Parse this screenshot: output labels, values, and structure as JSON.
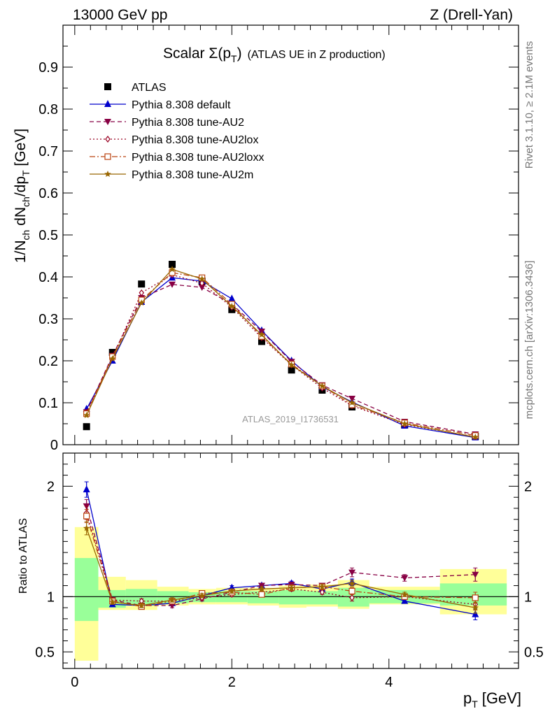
{
  "header": {
    "left": "13000 GeV pp",
    "right": "Z (Drell-Yan)"
  },
  "side_labels": {
    "rivet": "Rivet 3.1.10, ≥ 2.1M events",
    "mcplots": "mcplots.cern.ch [arXiv:1306.3436]"
  },
  "chart_data": {
    "type": "line",
    "title": "Scalar Σ(pT) (ATLAS UE in Z production)",
    "title_main": "Scalar Σ(p",
    "title_sub": "T",
    "title_close": ")",
    "title_rest": "(ATLAS UE in Z production)",
    "watermark": "ATLAS_2019_I1736531",
    "xlabel": "p_T [GeV]",
    "xlabel_main": "p",
    "xlabel_sub": "T",
    "xlabel_unit": "[GeV]",
    "ylabel": "1/N_ch dN_ch/dp_T [GeV]",
    "ylabel_parts": {
      "a": "1/N",
      "b": "ch",
      "c": " dN",
      "d": "ch",
      "e": "/dp",
      "f": "T",
      "g": " [GeV]"
    },
    "ratio_ylabel": "Ratio to ATLAS",
    "xlim": [
      -0.15,
      5.65
    ],
    "ylim_main": [
      0,
      1.0
    ],
    "ylim_ratio": [
      0.35,
      2.3
    ],
    "x_ticks": [
      "0",
      "2",
      "4"
    ],
    "y_ticks_main": [
      "0",
      "0.1",
      "0.2",
      "0.3",
      "0.4",
      "0.5",
      "0.6",
      "0.7",
      "0.8",
      "0.9"
    ],
    "y_ticks_ratio": [
      "0.5",
      "1",
      "2"
    ],
    "x": [
      0.15,
      0.48,
      0.85,
      1.24,
      1.62,
      2.0,
      2.38,
      2.76,
      3.15,
      3.53,
      4.2,
      5.1
    ],
    "bin_edges": [
      0,
      0.3,
      0.65,
      1.05,
      1.45,
      1.8,
      2.2,
      2.6,
      2.95,
      3.35,
      3.75,
      4.65,
      5.5
    ],
    "band_inner": [
      [
        0.78,
        1.35
      ],
      [
        0.9,
        1.06
      ],
      [
        0.92,
        1.07
      ],
      [
        0.94,
        1.05
      ],
      [
        0.95,
        1.04
      ],
      [
        0.95,
        1.05
      ],
      [
        0.94,
        1.05
      ],
      [
        0.93,
        1.06
      ],
      [
        0.93,
        1.05
      ],
      [
        0.91,
        1.08
      ],
      [
        0.94,
        1.06
      ],
      [
        0.92,
        1.12
      ]
    ],
    "band_outer": [
      [
        0.42,
        1.63
      ],
      [
        0.88,
        1.18
      ],
      [
        0.88,
        1.15
      ],
      [
        0.92,
        1.09
      ],
      [
        0.93,
        1.07
      ],
      [
        0.93,
        1.08
      ],
      [
        0.92,
        1.08
      ],
      [
        0.9,
        1.1
      ],
      [
        0.91,
        1.11
      ],
      [
        0.89,
        1.15
      ],
      [
        0.93,
        1.09
      ],
      [
        0.84,
        1.25
      ]
    ],
    "series": [
      {
        "name": "ATLAS",
        "color": "#000000",
        "style": "data",
        "marker": "square",
        "values": [
          0.043,
          0.22,
          0.383,
          0.43,
          0.39,
          0.322,
          0.246,
          0.178,
          0.13,
          0.09,
          0.047,
          0.02
        ]
      },
      {
        "name": "Pythia 8.308 default",
        "color": "#0000cc",
        "style": "solid",
        "marker": "triangle-up",
        "values": [
          0.085,
          0.2,
          0.34,
          0.398,
          0.39,
          0.348,
          0.272,
          0.2,
          0.138,
          0.102,
          0.045,
          0.017
        ],
        "ratio": [
          1.97,
          0.93,
          0.92,
          0.94,
          1.01,
          1.08,
          1.1,
          1.12,
          1.07,
          1.13,
          0.96,
          0.84
        ],
        "ratio_err": [
          0.07,
          0.02,
          0.02,
          0.02,
          0.02,
          0.02,
          0.02,
          0.02,
          0.02,
          0.03,
          0.02,
          0.05
        ]
      },
      {
        "name": "Pythia 8.308 tune-AU2",
        "color": "#880044",
        "style": "dash",
        "marker": "triangle-down",
        "values": [
          0.078,
          0.212,
          0.35,
          0.382,
          0.375,
          0.335,
          0.27,
          0.198,
          0.142,
          0.11,
          0.055,
          0.025
        ],
        "ratio": [
          1.82,
          0.97,
          0.92,
          0.92,
          0.98,
          1.04,
          1.1,
          1.11,
          1.1,
          1.22,
          1.17,
          1.2
        ],
        "ratio_err": [
          0.06,
          0.02,
          0.02,
          0.02,
          0.02,
          0.02,
          0.02,
          0.02,
          0.02,
          0.04,
          0.03,
          0.06
        ]
      },
      {
        "name": "Pythia 8.308 tune-AU2lox",
        "color": "#990022",
        "style": "dot",
        "marker": "diamond-open",
        "values": [
          0.076,
          0.208,
          0.362,
          0.405,
          0.385,
          0.328,
          0.255,
          0.19,
          0.135,
          0.093,
          0.048,
          0.019
        ],
        "ratio": [
          1.76,
          0.97,
          0.96,
          0.96,
          0.99,
          1.02,
          1.04,
          1.07,
          1.04,
          0.99,
          1.0,
          0.93
        ],
        "ratio_err": [
          0.06,
          0.02,
          0.02,
          0.02,
          0.02,
          0.02,
          0.02,
          0.02,
          0.02,
          0.03,
          0.02,
          0.05
        ]
      },
      {
        "name": "Pythia 8.308 tune-AU2loxx",
        "color": "#bb4411",
        "style": "dashdot",
        "marker": "square-open",
        "values": [
          0.074,
          0.21,
          0.345,
          0.41,
          0.398,
          0.335,
          0.258,
          0.192,
          0.14,
          0.095,
          0.052,
          0.022
        ],
        "ratio": [
          1.73,
          0.96,
          0.91,
          0.96,
          1.03,
          1.04,
          1.02,
          1.08,
          1.09,
          1.05,
          1.0,
          0.99
        ],
        "ratio_err": [
          0.06,
          0.02,
          0.02,
          0.02,
          0.02,
          0.02,
          0.02,
          0.02,
          0.02,
          0.03,
          0.02,
          0.05
        ]
      },
      {
        "name": "Pythia 8.308 tune-AU2m",
        "color": "#996600",
        "style": "solid",
        "marker": "star",
        "values": [
          0.07,
          0.205,
          0.338,
          0.418,
          0.395,
          0.33,
          0.262,
          0.19,
          0.14,
          0.1,
          0.05,
          0.018
        ],
        "ratio": [
          1.62,
          0.95,
          0.92,
          0.97,
          1.01,
          1.05,
          1.07,
          1.08,
          1.09,
          1.12,
          1.02,
          0.9
        ],
        "ratio_err": [
          0.06,
          0.02,
          0.02,
          0.02,
          0.02,
          0.02,
          0.02,
          0.02,
          0.02,
          0.03,
          0.02,
          0.05
        ]
      }
    ]
  }
}
